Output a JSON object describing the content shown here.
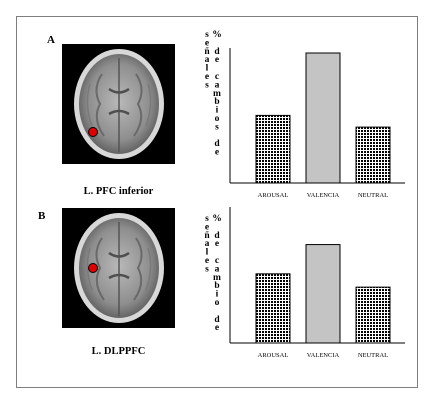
{
  "panels": [
    {
      "letter": "A",
      "caption": "L. PFC inferior",
      "marker_color": "#e00000"
    },
    {
      "letter": "B",
      "caption": "L.  DLPPFC",
      "marker_color": "#e00000"
    }
  ],
  "chart_data": [
    {
      "type": "bar",
      "title": "",
      "xlabel": "",
      "ylabel": "% de cambios de señales",
      "categories": [
        "AROUSAL",
        "VALENCIA",
        "NEUTRAL"
      ],
      "values": [
        52,
        100,
        43
      ],
      "ylim": [
        0,
        100
      ],
      "bar_styles": [
        "dotted",
        "light-gray",
        "dotted"
      ],
      "grid": false
    },
    {
      "type": "bar",
      "title": "",
      "xlabel": "",
      "ylabel": "% de cambio de señales",
      "categories": [
        "AROUSAL",
        "VALENCIA",
        "NEUTRAL"
      ],
      "values": [
        52,
        74,
        42
      ],
      "ylim": [
        0,
        100
      ],
      "bar_styles": [
        "dotted",
        "light-gray",
        "dotted"
      ],
      "grid": false
    }
  ]
}
